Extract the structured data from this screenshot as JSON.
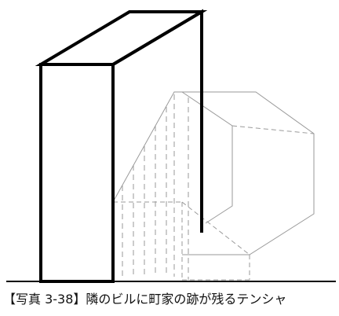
{
  "figure": {
    "caption": "【写真 3-38】隣のビルに町家の跡が残るテンシャ"
  },
  "colors": {
    "building_stroke": "#000000",
    "ghost_stroke": "#9a9a9a",
    "ground": "#000000",
    "background": "#ffffff"
  }
}
